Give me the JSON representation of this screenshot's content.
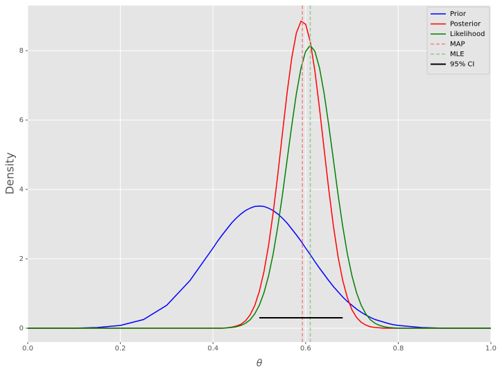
{
  "chart_data": {
    "type": "line",
    "xlabel": "θ",
    "ylabel": "Density",
    "x": [
      0,
      0.05,
      0.1,
      0.15,
      0.2,
      0.25,
      0.3,
      0.35,
      0.4,
      0.41,
      0.42,
      0.43,
      0.44,
      0.45,
      0.46,
      0.47,
      0.48,
      0.49,
      0.5,
      0.51,
      0.52,
      0.53,
      0.54,
      0.55,
      0.56,
      0.57,
      0.58,
      0.59,
      0.6,
      0.61,
      0.62,
      0.63,
      0.64,
      0.65,
      0.66,
      0.67,
      0.68,
      0.69,
      0.7,
      0.71,
      0.72,
      0.73,
      0.74,
      0.75,
      0.76,
      0.77,
      0.78,
      0.79,
      0.8,
      0.85,
      0.9,
      0.95,
      1
    ],
    "series": [
      {
        "name": "Prior",
        "color": "#0000ff",
        "values": [
          0,
          0,
          0,
          0.02,
          0.08,
          0.25,
          0.66,
          1.37,
          2.31,
          2.51,
          2.69,
          2.86,
          3.03,
          3.17,
          3.29,
          3.39,
          3.46,
          3.51,
          3.52,
          3.51,
          3.46,
          3.39,
          3.29,
          3.17,
          3.03,
          2.86,
          2.69,
          2.51,
          2.31,
          2.12,
          1.92,
          1.73,
          1.55,
          1.37,
          1.2,
          1.05,
          0.9,
          0.77,
          0.66,
          0.55,
          0.46,
          0.38,
          0.31,
          0.25,
          0.21,
          0.17,
          0.13,
          0.1,
          0.08,
          0.02,
          0,
          0,
          0
        ]
      },
      {
        "name": "Posterior",
        "color": "#ff0000",
        "values": [
          0,
          0,
          0,
          0,
          0,
          0,
          0,
          0,
          0,
          0,
          0,
          0.01,
          0.03,
          0.06,
          0.11,
          0.21,
          0.38,
          0.65,
          1.06,
          1.63,
          2.39,
          3.34,
          4.44,
          5.63,
          6.79,
          7.79,
          8.51,
          8.85,
          8.76,
          8.26,
          7.41,
          6.33,
          5.15,
          3.99,
          2.94,
          2.06,
          1.38,
          0.88,
          0.53,
          0.31,
          0.17,
          0.09,
          0.04,
          0.02,
          0.01,
          0,
          0,
          0,
          0,
          0,
          0,
          0,
          0
        ]
      },
      {
        "name": "Likelihood",
        "color": "#008000",
        "values": [
          0,
          0,
          0,
          0,
          0,
          0,
          0,
          0,
          0,
          0,
          0,
          0.01,
          0.02,
          0.04,
          0.08,
          0.14,
          0.24,
          0.41,
          0.66,
          1.02,
          1.51,
          2.15,
          2.94,
          3.85,
          4.85,
          5.84,
          6.76,
          7.5,
          7.98,
          8.15,
          7.98,
          7.5,
          6.76,
          5.84,
          4.85,
          3.85,
          2.94,
          2.15,
          1.51,
          1.02,
          0.66,
          0.41,
          0.24,
          0.14,
          0.08,
          0.04,
          0.02,
          0.01,
          0,
          0,
          0,
          0,
          0
        ]
      }
    ],
    "vlines": [
      {
        "name": "MAP",
        "color": "#f08080",
        "x": 0.593
      },
      {
        "name": "MLE",
        "color": "#90c890",
        "x": 0.61
      }
    ],
    "interval": {
      "name": "95% CI",
      "color": "#000000",
      "x": [
        0.5,
        0.68
      ],
      "y": 0.3
    },
    "xlim": [
      0,
      1
    ],
    "ylim": [
      -0.4,
      9.3
    ],
    "xticks": [
      {
        "value": 0,
        "label": "0.0"
      },
      0.2,
      0.4,
      0.6,
      0.8,
      {
        "value": 1,
        "label": "1.0"
      }
    ],
    "yticks": [
      0,
      2,
      4,
      6,
      8
    ],
    "grid": true,
    "legend": "upper right"
  }
}
